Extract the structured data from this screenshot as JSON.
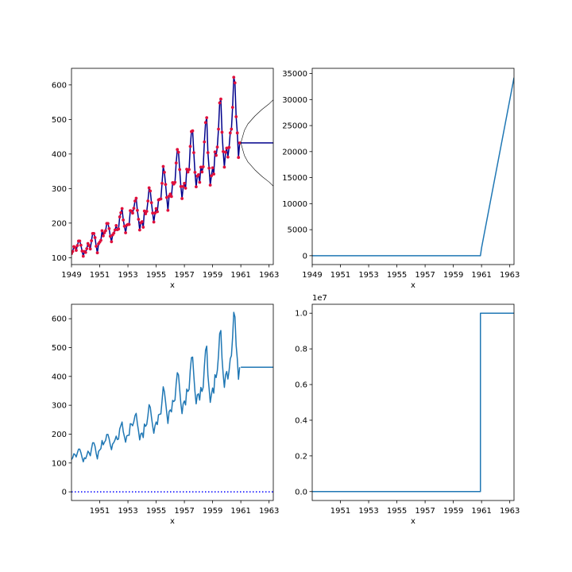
{
  "chart_data": [
    {
      "panel": "top-left",
      "type": "line",
      "xlabel": "x",
      "ylabel": "",
      "title": "",
      "xlim": [
        1949.0,
        1963.3
      ],
      "ylim": [
        80,
        648
      ],
      "xticks": [
        "1949",
        "1951",
        "1953",
        "1955",
        "1957",
        "1959",
        "1961",
        "1963"
      ],
      "yticks": [
        "100",
        "200",
        "300",
        "400",
        "500",
        "600"
      ],
      "series": [
        {
          "role": "observed",
          "color": "#00008b",
          "marker_color": "#e0103c",
          "x_start": 1949.0,
          "x_step": 0.083333,
          "values": [
            112,
            118,
            132,
            129,
            121,
            135,
            148,
            148,
            136,
            119,
            104,
            118,
            115,
            126,
            141,
            135,
            125,
            149,
            170,
            170,
            158,
            133,
            114,
            140,
            145,
            150,
            178,
            163,
            172,
            178,
            199,
            199,
            184,
            162,
            146,
            166,
            171,
            180,
            193,
            181,
            183,
            218,
            230,
            242,
            209,
            191,
            172,
            194,
            196,
            196,
            236,
            235,
            229,
            243,
            264,
            272,
            237,
            211,
            180,
            201,
            204,
            188,
            235,
            227,
            234,
            264,
            302,
            293,
            259,
            229,
            203,
            229,
            242,
            233,
            267,
            269,
            270,
            315,
            364,
            347,
            312,
            274,
            237,
            278,
            284,
            277,
            317,
            313,
            318,
            374,
            413,
            405,
            355,
            306,
            271,
            306,
            315,
            301,
            356,
            348,
            355,
            422,
            465,
            467,
            404,
            347,
            305,
            336,
            340,
            318,
            362,
            348,
            363,
            435,
            491,
            505,
            404,
            359,
            310,
            337,
            360,
            342,
            406,
            396,
            420,
            472,
            548,
            559,
            463,
            407,
            362,
            405,
            417,
            391,
            419,
            461,
            472,
            535,
            622,
            606,
            508,
            461,
            390,
            432
          ]
        },
        {
          "role": "forecast",
          "color": "#00008b",
          "x": [
            1961.0,
            1963.3
          ],
          "values": [
            432,
            432
          ]
        },
        {
          "role": "upper-band",
          "color": "#000000",
          "x": [
            1961.0,
            1961.25,
            1961.5,
            1962.0,
            1962.5,
            1963.0,
            1963.3
          ],
          "values": [
            432,
            468,
            487,
            510,
            529,
            545,
            557
          ]
        },
        {
          "role": "lower-band",
          "color": "#000000",
          "x": [
            1961.0,
            1961.25,
            1961.5,
            1962.0,
            1962.5,
            1963.0,
            1963.3
          ],
          "values": [
            432,
            396,
            377,
            354,
            335,
            319,
            307
          ]
        }
      ]
    },
    {
      "panel": "top-right",
      "type": "line",
      "xlabel": "x",
      "ylabel": "",
      "title": "",
      "xlim": [
        1949.0,
        1963.3
      ],
      "ylim": [
        -1700,
        36000
      ],
      "xticks": [
        "1949",
        "1951",
        "1953",
        "1955",
        "1957",
        "1959",
        "1961",
        "1963"
      ],
      "yticks": [
        "0",
        "5000",
        "10000",
        "15000",
        "20000",
        "25000",
        "30000",
        "35000"
      ],
      "series": [
        {
          "color": "#1f77b4",
          "x": [
            1949.0,
            1960.92,
            1961.0,
            1963.3
          ],
          "values": [
            0,
            0,
            1500,
            34200
          ]
        }
      ]
    },
    {
      "panel": "bottom-left",
      "type": "line",
      "xlabel": "x",
      "ylabel": "",
      "title": "",
      "xlim": [
        1949.0,
        1963.3
      ],
      "ylim": [
        -30,
        650
      ],
      "xticks": [
        "1951",
        "1953",
        "1955",
        "1957",
        "1959",
        "1961",
        "1963"
      ],
      "yticks": [
        "0",
        "100",
        "200",
        "300",
        "400",
        "500",
        "600"
      ],
      "series": [
        {
          "role": "data",
          "color": "#1f77b4",
          "x_start": 1949.0,
          "x_step": 0.083333,
          "source": "top-left.observed"
        },
        {
          "role": "forecast",
          "color": "#1f77b4",
          "x": [
            1961.0,
            1963.3
          ],
          "values": [
            432,
            432
          ]
        },
        {
          "role": "zero-line",
          "color": "#0000ff",
          "dotted": true,
          "x": [
            1949.0,
            1963.3
          ],
          "values": [
            0,
            0
          ]
        }
      ]
    },
    {
      "panel": "bottom-right",
      "type": "line",
      "xlabel": "x",
      "ylabel": "",
      "title": "",
      "offset_text": "1e7",
      "xlim": [
        1949.0,
        1963.3
      ],
      "ylim": [
        -0.05,
        1.05
      ],
      "xticks": [
        "1951",
        "1953",
        "1955",
        "1957",
        "1959",
        "1961",
        "1963"
      ],
      "yticks": [
        "0.0",
        "0.2",
        "0.4",
        "0.6",
        "0.8",
        "1.0"
      ],
      "series": [
        {
          "color": "#1f77b4",
          "x": [
            1949.0,
            1960.92,
            1960.92,
            1963.3
          ],
          "values": [
            0,
            0,
            1.0,
            1.0
          ]
        }
      ]
    }
  ]
}
